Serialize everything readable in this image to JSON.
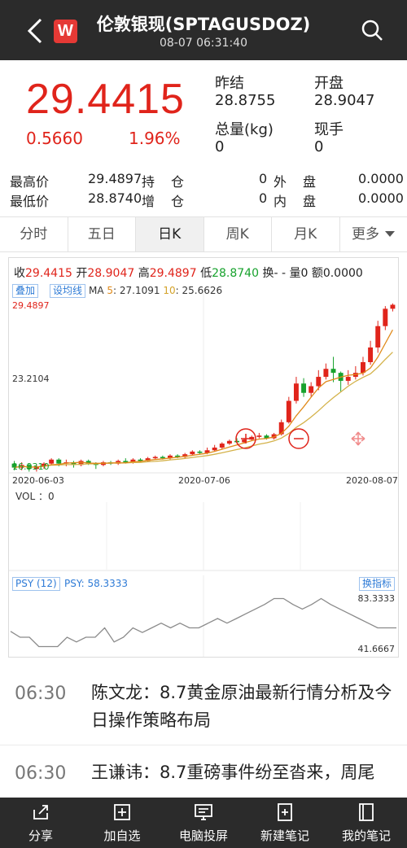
{
  "header": {
    "title": "伦敦银现(SPTAGUSDOZ)",
    "datetime": "08-07 06:31:40",
    "logo_letter": "W"
  },
  "quote": {
    "price": "29.4415",
    "change": "0.5660",
    "change_pct": "1.96%",
    "prev_close_label": "昨结",
    "prev_close": "28.8755",
    "open_label": "开盘",
    "open": "28.9047",
    "volume_label": "总量(kg)",
    "volume": "0",
    "current_hand_label": "现手",
    "current_hand": "0"
  },
  "stats": {
    "high_label": "最高价",
    "high": "29.4897",
    "low_label": "最低价",
    "low": "28.8740",
    "hold_label_a": "持",
    "hold_label_b": "仓",
    "hold_val": "0",
    "add_label_a": "增",
    "add_label_b": "仓",
    "add_val": "0",
    "outer_label_a": "外",
    "outer_label_b": "盘",
    "outer_val": "0.0000",
    "inner_label_a": "内",
    "inner_label_b": "盘",
    "inner_val": "0.0000"
  },
  "tabs": [
    {
      "label": "分时"
    },
    {
      "label": "五日"
    },
    {
      "label": "日K"
    },
    {
      "label": "周K"
    },
    {
      "label": "月K"
    },
    {
      "label": "更多"
    }
  ],
  "chart": {
    "legend": {
      "close_label": "收",
      "close": "29.4415",
      "open_label": "开",
      "open": "28.9047",
      "high_label": "高",
      "high": "29.4897",
      "low_label": "低",
      "low": "28.8740",
      "turnover_label": "换",
      "turnover": "- -",
      "vol_label": "量",
      "vol": "0",
      "amount_label": "额",
      "amount": "0.0000"
    },
    "overlay_btn": "叠加",
    "indicator_btn": "设均线",
    "ma_label": "MA",
    "ma5_label": "5",
    "ma5": "27.1091",
    "ma10_label": "10",
    "ma10": "25.6626",
    "y_top": "29.4897",
    "y_mid": "23.2104",
    "y_bottom": "16.9310",
    "x_labels": [
      "2020-06-03",
      "2020-07-06",
      "2020-08-07"
    ],
    "vol_text": "VOL ：0",
    "psy_tag": "PSY (12)",
    "psy_val": "PSY: 58.3333",
    "psy_top": "83.3333",
    "psy_bottom": "41.6667",
    "switch_btn": "换指标",
    "colors": {
      "up": "#e0241b",
      "down": "#17a22d",
      "ma5": "#e08a1a",
      "ma10": "#d4b24a",
      "psy": "#8a8a8a"
    }
  },
  "chart_data": {
    "type": "candlestick",
    "x_start": "2020-06-03",
    "x_mid": "2020-07-06",
    "x_end": "2020-08-07",
    "ylim": [
      16.931,
      29.4897
    ],
    "candles": [
      [
        17.5,
        17.2,
        17.7,
        17.0
      ],
      [
        17.2,
        17.4,
        17.6,
        17.0
      ],
      [
        17.4,
        17.1,
        17.5,
        16.9
      ],
      [
        17.1,
        17.3,
        17.4,
        16.9
      ],
      [
        17.3,
        17.5,
        17.6,
        17.1
      ],
      [
        17.5,
        17.8,
        17.9,
        17.4
      ],
      [
        17.8,
        17.5,
        17.9,
        17.3
      ],
      [
        17.5,
        17.6,
        17.8,
        17.3
      ],
      [
        17.6,
        17.4,
        17.7,
        17.2
      ],
      [
        17.4,
        17.7,
        17.8,
        17.3
      ],
      [
        17.7,
        17.5,
        17.8,
        17.4
      ],
      [
        17.5,
        17.4,
        17.6,
        17.1
      ],
      [
        17.4,
        17.6,
        17.7,
        17.3
      ],
      [
        17.6,
        17.5,
        17.7,
        17.4
      ],
      [
        17.5,
        17.7,
        17.8,
        17.4
      ],
      [
        17.7,
        17.6,
        17.9,
        17.5
      ],
      [
        17.6,
        17.8,
        17.9,
        17.5
      ],
      [
        17.8,
        17.7,
        17.9,
        17.6
      ],
      [
        17.7,
        17.9,
        18.0,
        17.6
      ],
      [
        17.9,
        18.0,
        18.1,
        17.8
      ],
      [
        18.0,
        17.9,
        18.1,
        17.8
      ],
      [
        17.9,
        18.1,
        18.2,
        17.8
      ],
      [
        18.1,
        18.0,
        18.2,
        17.9
      ],
      [
        18.0,
        18.2,
        18.3,
        17.9
      ],
      [
        18.2,
        18.4,
        18.5,
        18.1
      ],
      [
        18.4,
        18.3,
        18.5,
        18.2
      ],
      [
        18.3,
        18.5,
        18.7,
        18.2
      ],
      [
        18.5,
        18.7,
        18.9,
        18.4
      ],
      [
        18.7,
        19.0,
        19.1,
        18.6
      ],
      [
        19.0,
        19.2,
        19.3,
        18.9
      ],
      [
        19.2,
        19.1,
        19.4,
        19.0
      ],
      [
        19.1,
        19.3,
        19.4,
        19.0
      ],
      [
        19.3,
        19.5,
        19.6,
        19.2
      ],
      [
        19.5,
        19.6,
        19.8,
        19.4
      ],
      [
        19.6,
        19.4,
        19.7,
        19.3
      ],
      [
        19.4,
        19.7,
        19.8,
        19.3
      ],
      [
        19.7,
        20.6,
        20.8,
        19.6
      ],
      [
        20.6,
        22.2,
        22.5,
        20.5
      ],
      [
        22.2,
        23.5,
        24.0,
        22.0
      ],
      [
        23.5,
        22.8,
        23.9,
        22.5
      ],
      [
        22.8,
        23.3,
        23.6,
        22.5
      ],
      [
        23.3,
        24.0,
        24.5,
        23.0
      ],
      [
        24.0,
        24.6,
        25.0,
        23.8
      ],
      [
        24.6,
        24.3,
        25.5,
        23.6
      ],
      [
        24.3,
        23.7,
        24.4,
        22.9
      ],
      [
        23.7,
        24.0,
        24.5,
        23.4
      ],
      [
        24.0,
        24.3,
        24.8,
        23.8
      ],
      [
        24.3,
        25.1,
        25.5,
        24.1
      ],
      [
        25.1,
        26.2,
        26.7,
        24.9
      ],
      [
        26.2,
        27.8,
        28.2,
        25.8
      ],
      [
        27.8,
        29.1,
        29.3,
        27.5
      ],
      [
        29.1,
        29.4,
        29.5,
        28.9
      ]
    ],
    "psy": [
      55,
      50,
      50,
      42,
      42,
      42,
      50,
      46,
      50,
      50,
      58,
      46,
      50,
      58,
      54,
      58,
      62,
      58,
      62,
      58,
      58,
      62,
      66,
      62,
      66,
      70,
      74,
      78,
      83,
      83,
      78,
      74,
      78,
      83,
      78,
      74,
      70,
      66,
      62,
      58,
      58,
      58
    ]
  },
  "news": [
    {
      "time": "06:30",
      "text": "陈文龙：8.7黄金原油最新行情分析及今日操作策略布局"
    },
    {
      "time": "06:30",
      "text": "王谦讳：8.7重磅事件纷至沓来，周尾"
    }
  ],
  "bottom_bar": [
    {
      "label": "分享",
      "icon": "share-icon"
    },
    {
      "label": "加自选",
      "icon": "add-watchlist-icon"
    },
    {
      "label": "电脑投屏",
      "icon": "screen-cast-icon"
    },
    {
      "label": "新建笔记",
      "icon": "new-note-icon"
    },
    {
      "label": "我的笔记",
      "icon": "my-notes-icon"
    }
  ]
}
